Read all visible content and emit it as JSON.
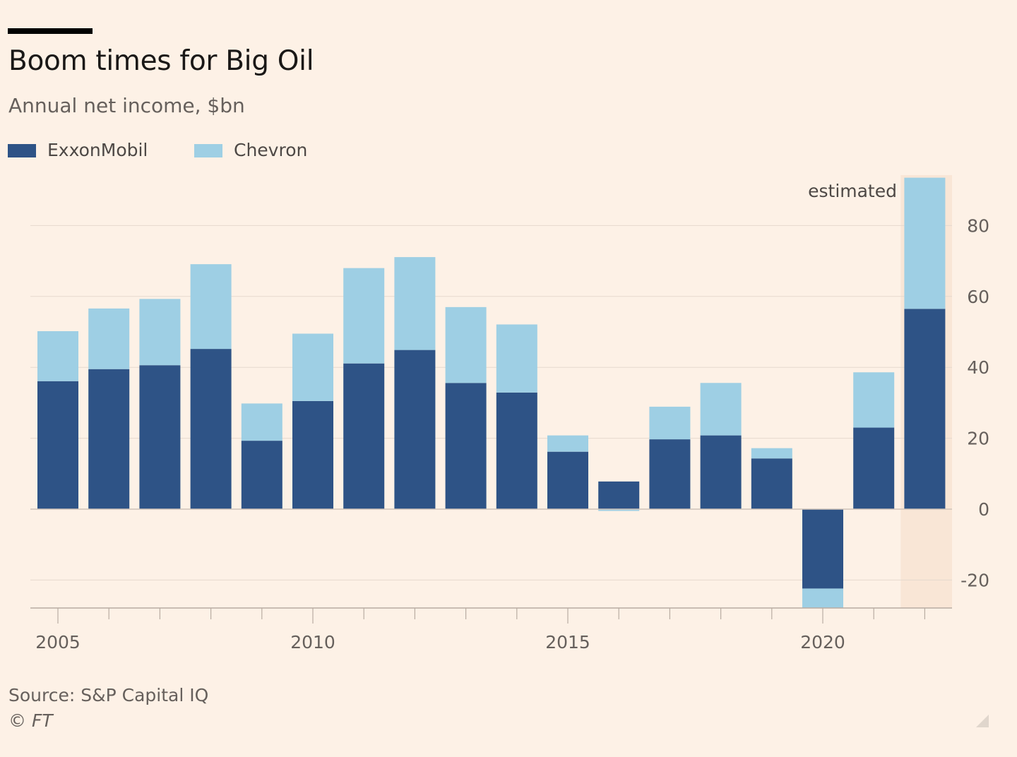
{
  "title": "Boom times for Big Oil",
  "subtitle": "Annual net income, $bn",
  "legend": [
    {
      "label": "ExxonMobil",
      "color": "#2e5386"
    },
    {
      "label": "Chevron",
      "color": "#9ecfe4"
    }
  ],
  "annotation": "estimated",
  "source": "Source: S&P Capital IQ",
  "copyright": "© FT",
  "chart_data": {
    "type": "bar",
    "stacked": true,
    "categories": [
      2005,
      2006,
      2007,
      2008,
      2009,
      2010,
      2011,
      2012,
      2013,
      2014,
      2015,
      2016,
      2017,
      2018,
      2019,
      2020,
      2021,
      2022
    ],
    "series": [
      {
        "name": "ExxonMobil",
        "color": "#2e5386",
        "values": [
          36.1,
          39.5,
          40.6,
          45.2,
          19.3,
          30.5,
          41.1,
          44.9,
          35.6,
          32.9,
          16.2,
          7.8,
          19.7,
          20.8,
          14.3,
          -22.4,
          23.0,
          56.5
        ]
      },
      {
        "name": "Chevron",
        "color": "#9ecfe4",
        "values": [
          14.1,
          17.1,
          18.7,
          23.9,
          10.5,
          19.0,
          26.9,
          26.2,
          21.4,
          19.2,
          4.6,
          -0.5,
          9.2,
          14.8,
          2.9,
          -5.5,
          15.6,
          37.0
        ]
      }
    ],
    "y_ticks": [
      80,
      60,
      40,
      20,
      0,
      -20
    ],
    "y_tick_labels": [
      "80",
      "60",
      "40",
      "20",
      "0",
      "-20"
    ],
    "x_tick_labels": [
      "2005",
      "2010",
      "2015",
      "2020"
    ],
    "ylim": [
      -28,
      94
    ],
    "estimated_category": 2022,
    "y_axis_side": "right",
    "grid": true
  }
}
